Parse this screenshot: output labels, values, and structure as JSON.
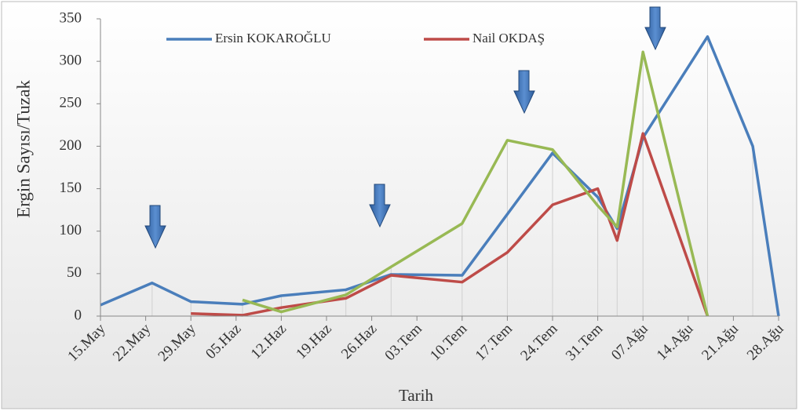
{
  "chart_data": {
    "type": "line",
    "y_label": "Ergin Sayısı/Tuzak",
    "x_label": "Tarih",
    "x": [
      0,
      8,
      14,
      22,
      28,
      38,
      45,
      56,
      63,
      70,
      77,
      80,
      84,
      94,
      101,
      105
    ],
    "xlim": [
      0,
      105
    ],
    "xticks": [
      {
        "value": 0,
        "label": "15.May"
      },
      {
        "value": 7,
        "label": "22.May"
      },
      {
        "value": 14,
        "label": "29.May"
      },
      {
        "value": 21,
        "label": "05.Haz"
      },
      {
        "value": 28,
        "label": "12.Haz"
      },
      {
        "value": 35,
        "label": "19.Haz"
      },
      {
        "value": 42,
        "label": "26.Haz"
      },
      {
        "value": 49,
        "label": "03.Tem"
      },
      {
        "value": 56,
        "label": "10.Tem"
      },
      {
        "value": 63,
        "label": "17.Tem"
      },
      {
        "value": 70,
        "label": "24.Tem"
      },
      {
        "value": 77,
        "label": "31.Tem"
      },
      {
        "value": 84,
        "label": "07.Ağu"
      },
      {
        "value": 91,
        "label": "14.Ağu"
      },
      {
        "value": 98,
        "label": "21.Ağu"
      },
      {
        "value": 105,
        "label": "28.Ağu"
      }
    ],
    "ylim": [
      0,
      350
    ],
    "yticks": [
      0,
      50,
      100,
      150,
      200,
      250,
      300,
      350
    ],
    "series": [
      {
        "name": "Ersin KOKAROĞLU",
        "color": "#4a7ebb",
        "values": [
          13,
          39,
          17,
          14,
          24,
          31,
          49,
          48,
          120,
          192,
          140,
          103,
          210,
          329,
          200,
          0
        ]
      },
      {
        "name": "Nail OKDAŞ",
        "color": "#be4b48",
        "values": [
          null,
          null,
          3,
          1,
          10,
          21,
          48,
          40,
          75,
          131,
          150,
          89,
          215,
          0,
          null,
          null
        ]
      },
      {
        "color": "#98b954",
        "values": [
          null,
          null,
          null,
          19,
          5,
          25,
          58,
          109,
          207,
          196,
          130,
          105,
          311,
          0,
          null,
          null
        ]
      }
    ]
  }
}
